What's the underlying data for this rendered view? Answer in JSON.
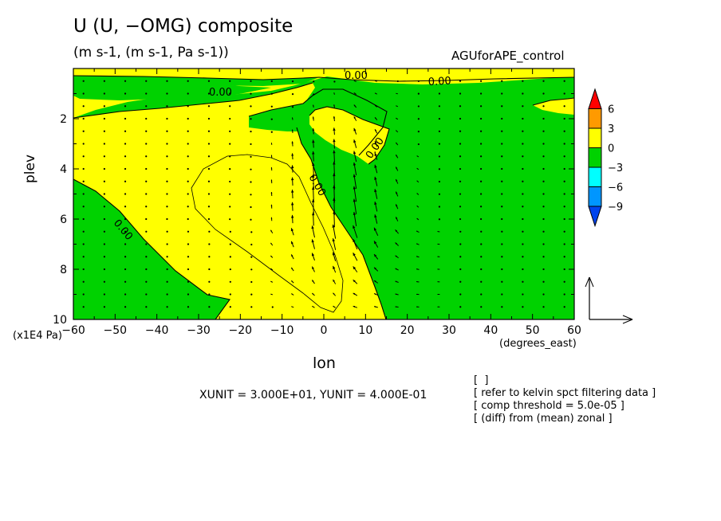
{
  "title": "U (U, −OMG) composite",
  "subtitle": "(m s-1, (m s-1, Pa s-1))",
  "run_label": "AGUforAPE_control",
  "x_axis": {
    "name": "lon",
    "unit": "(degrees_east)",
    "ticks": [
      -60,
      -50,
      -40,
      -30,
      -20,
      -10,
      0,
      10,
      20,
      30,
      40,
      50,
      60
    ],
    "range": [
      -60,
      60
    ]
  },
  "y_axis": {
    "name": "plev",
    "unit": "(x1E4 Pa)",
    "ticks": [
      2,
      4,
      6,
      8,
      10
    ],
    "range": [
      0,
      10
    ],
    "inverted": true
  },
  "vector_unit_text": "XUNIT = 3.000E+01, YUNIT = 4.000E-01",
  "notes": [
    "[  ]",
    "[ refer to kelvin spct filtering data ]",
    "[ comp threshold = 5.0e-05 ]",
    "[ (diff) from (mean) zonal ]"
  ],
  "contour_label": "0.00",
  "colorbar": {
    "labels": [
      "6",
      "3",
      "0",
      "−3",
      "−6",
      "−9"
    ],
    "colors": [
      "#ff0000",
      "#ff9a00",
      "#ffff00",
      "#00d200",
      "#00ffff",
      "#0096ff",
      "#0044ee"
    ]
  },
  "colors": {
    "positive": "#ffff00",
    "negative": "#00d200",
    "axis": "#000000"
  },
  "chart_data": {
    "type": "heatmap",
    "title": "U (U, −OMG) composite",
    "subtitle": "(m s-1, (m s-1, Pa s-1))",
    "xlabel": "lon",
    "ylabel": "plev",
    "xlim": [
      -60,
      60
    ],
    "ylim": [
      10,
      0
    ],
    "levels": [
      -9,
      -6,
      -3,
      0,
      3,
      6
    ],
    "colorbar_labels": [
      "6",
      "3",
      "0",
      "−3",
      "−6",
      "−9"
    ],
    "contour_labels": [
      "0.00"
    ],
    "description_regions": {
      "negative_green": [
        "upper-right and east of 10E",
        "lower-left west of -30E",
        "band near plev 1-2 on west side"
      ],
      "positive_yellow": [
        "central column from -60 to 10E at plev 2-10",
        "upper layer near plev 0.2-1"
      ]
    },
    "vector_scale": {
      "xunit": 30.0,
      "yunit": 0.4
    }
  }
}
